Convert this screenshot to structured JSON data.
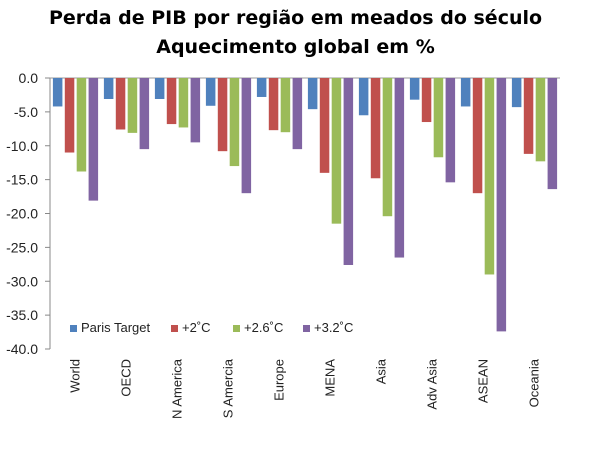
{
  "chart_data": {
    "type": "bar",
    "title": "Perda de PIB por região em meados do século",
    "subtitle": "Aquecimento global em %",
    "categories": [
      "World",
      "OECD",
      "N America",
      "S Amercia",
      "Europe",
      "MENA",
      "Asia",
      "Adv Asia",
      "ASEAN",
      "Oceania"
    ],
    "series": [
      {
        "name": "Paris Target",
        "color": "#4f81bd",
        "values": [
          -4.2,
          -3.1,
          -3.1,
          -4.1,
          -2.8,
          -4.6,
          -5.5,
          -3.2,
          -4.2,
          -4.3
        ]
      },
      {
        "name": "+2˚C",
        "color": "#c0504d",
        "values": [
          -11.0,
          -7.6,
          -6.8,
          -10.8,
          -7.7,
          -14.0,
          -14.8,
          -6.5,
          -17.0,
          -11.2
        ]
      },
      {
        "name": "+2.6˚C",
        "color": "#9bbb59",
        "values": [
          -13.8,
          -8.1,
          -7.3,
          -13.0,
          -8.0,
          -21.5,
          -20.4,
          -11.7,
          -29.0,
          -12.3
        ]
      },
      {
        "name": "+3.2˚C",
        "color": "#8064a2",
        "values": [
          -18.1,
          -10.5,
          -9.5,
          -17.0,
          -10.5,
          -27.6,
          -26.5,
          -15.4,
          -37.4,
          -16.4
        ]
      }
    ],
    "ylim": [
      -40,
      0
    ],
    "yticks": [
      "0.0",
      "-5.0",
      "-10.0",
      "-15.0",
      "-20.0",
      "-25.0",
      "-30.0",
      "-35.0",
      "-40.0"
    ],
    "xlabel": "",
    "ylabel": "",
    "grid": false,
    "legend_position": "bottom-left"
  }
}
